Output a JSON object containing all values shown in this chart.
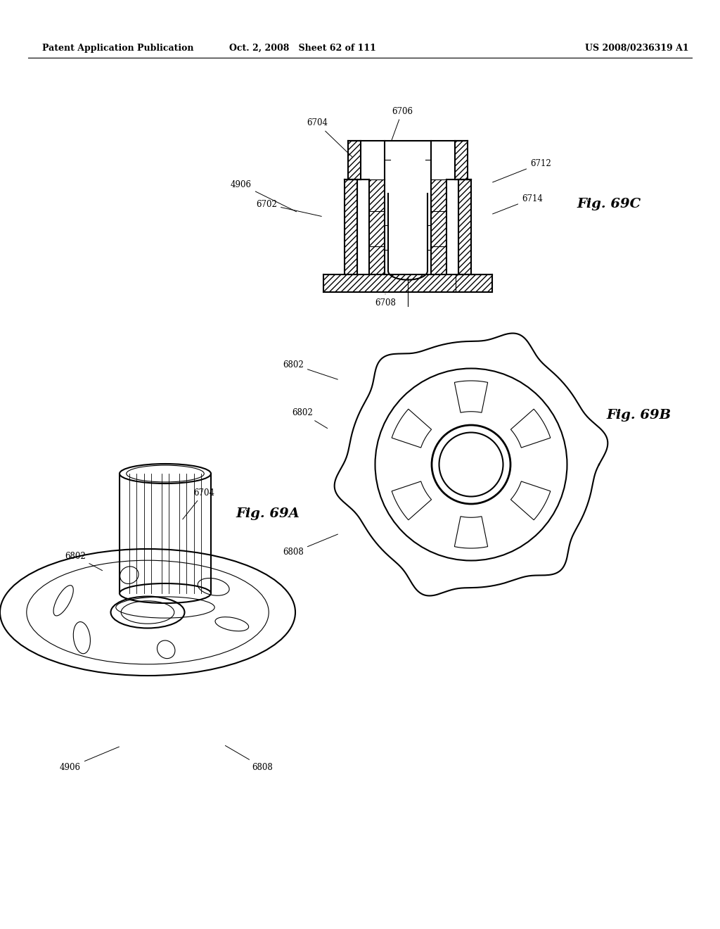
{
  "background_color": "#ffffff",
  "page_header": {
    "left": "Patent Application Publication",
    "center": "Oct. 2, 2008   Sheet 62 of 111",
    "right": "US 2008/0236319 A1"
  },
  "fig69c_label": "Fig. 69C",
  "fig69a_label": "Fig. 69A",
  "fig69b_label": "Fig. 69B"
}
